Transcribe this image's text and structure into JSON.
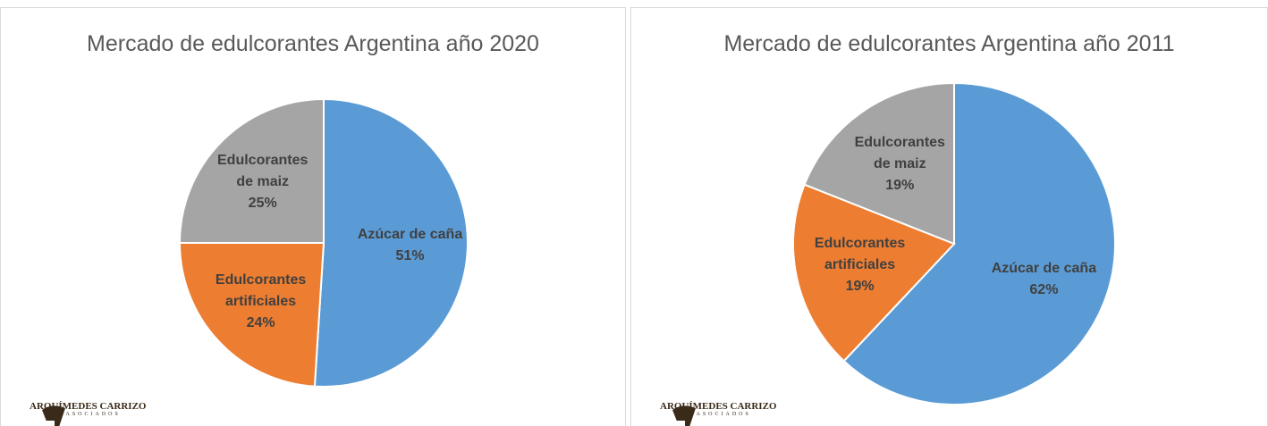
{
  "chart_data": [
    {
      "type": "pie",
      "title": "Mercado de edulcorantes Argentina año 2020",
      "categories": [
        "Azúcar de caña",
        "Edulcorantes artificiales",
        "Edulcorantes de maiz"
      ],
      "values": [
        51,
        24,
        25
      ],
      "value_labels": [
        "51%",
        "24%",
        "25%"
      ],
      "colors": [
        "#5b9bd5",
        "#ed7d31",
        "#a5a5a5"
      ]
    },
    {
      "type": "pie",
      "title": "Mercado de edulcorantes Argentina año 2011",
      "categories": [
        "Azúcar de caña",
        "Edulcorantes artificiales",
        "Edulcorantes de maiz"
      ],
      "values": [
        62,
        19,
        19
      ],
      "value_labels": [
        "62%",
        "19%",
        "19%"
      ],
      "colors": [
        "#5b9bd5",
        "#ed7d31",
        "#a5a5a5"
      ]
    }
  ],
  "logo": {
    "name": "ARQUÍMEDES CARRIZO",
    "subtitle": "& ASOCIADOS"
  }
}
